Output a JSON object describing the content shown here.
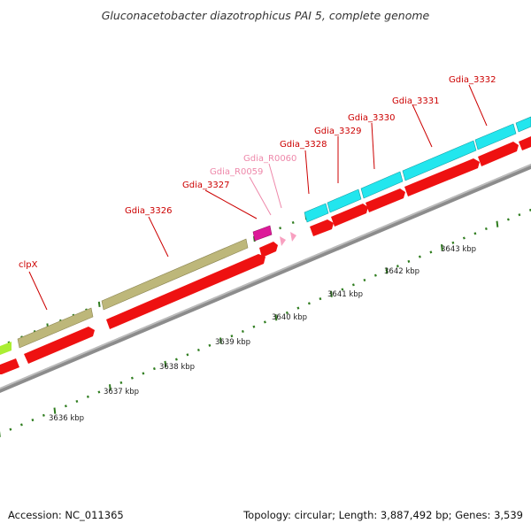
{
  "title": "Gluconacetobacter diazotrophicus PAI 5, complete genome",
  "footer": {
    "accession": "Accession: NC_011365",
    "summary": "Topology: circular; Length: 3,887,492 bp; Genes: 3,539"
  },
  "colors": {
    "cds": "#ee1111",
    "label_red": "#cc0000",
    "label_pink": "#ee88aa",
    "tick": "#2f7d1f",
    "backbone": "#888888",
    "olive": "#bdb77a",
    "cyan": "#22e6ee",
    "magenta": "#dd1a99",
    "lime": "#aaee33"
  },
  "genes": [
    {
      "label": "clpX",
      "type": "cds"
    },
    {
      "label": "Gdia_3326",
      "type": "cds"
    },
    {
      "label": "Gdia_3327",
      "type": "cds"
    },
    {
      "label": "Gdia_R0059",
      "type": "rna"
    },
    {
      "label": "Gdia_R0060",
      "type": "rna"
    },
    {
      "label": "Gdia_3328",
      "type": "cds"
    },
    {
      "label": "Gdia_3329",
      "type": "cds"
    },
    {
      "label": "Gdia_3330",
      "type": "cds"
    },
    {
      "label": "Gdia_3331",
      "type": "cds"
    },
    {
      "label": "Gdia_3332",
      "type": "cds"
    }
  ],
  "scale_labels": [
    "3636 kbp",
    "3637 kbp",
    "3638 kbp",
    "3639 kbp",
    "3640 kbp",
    "3641 kbp",
    "3642 kbp",
    "3643 kbp"
  ]
}
